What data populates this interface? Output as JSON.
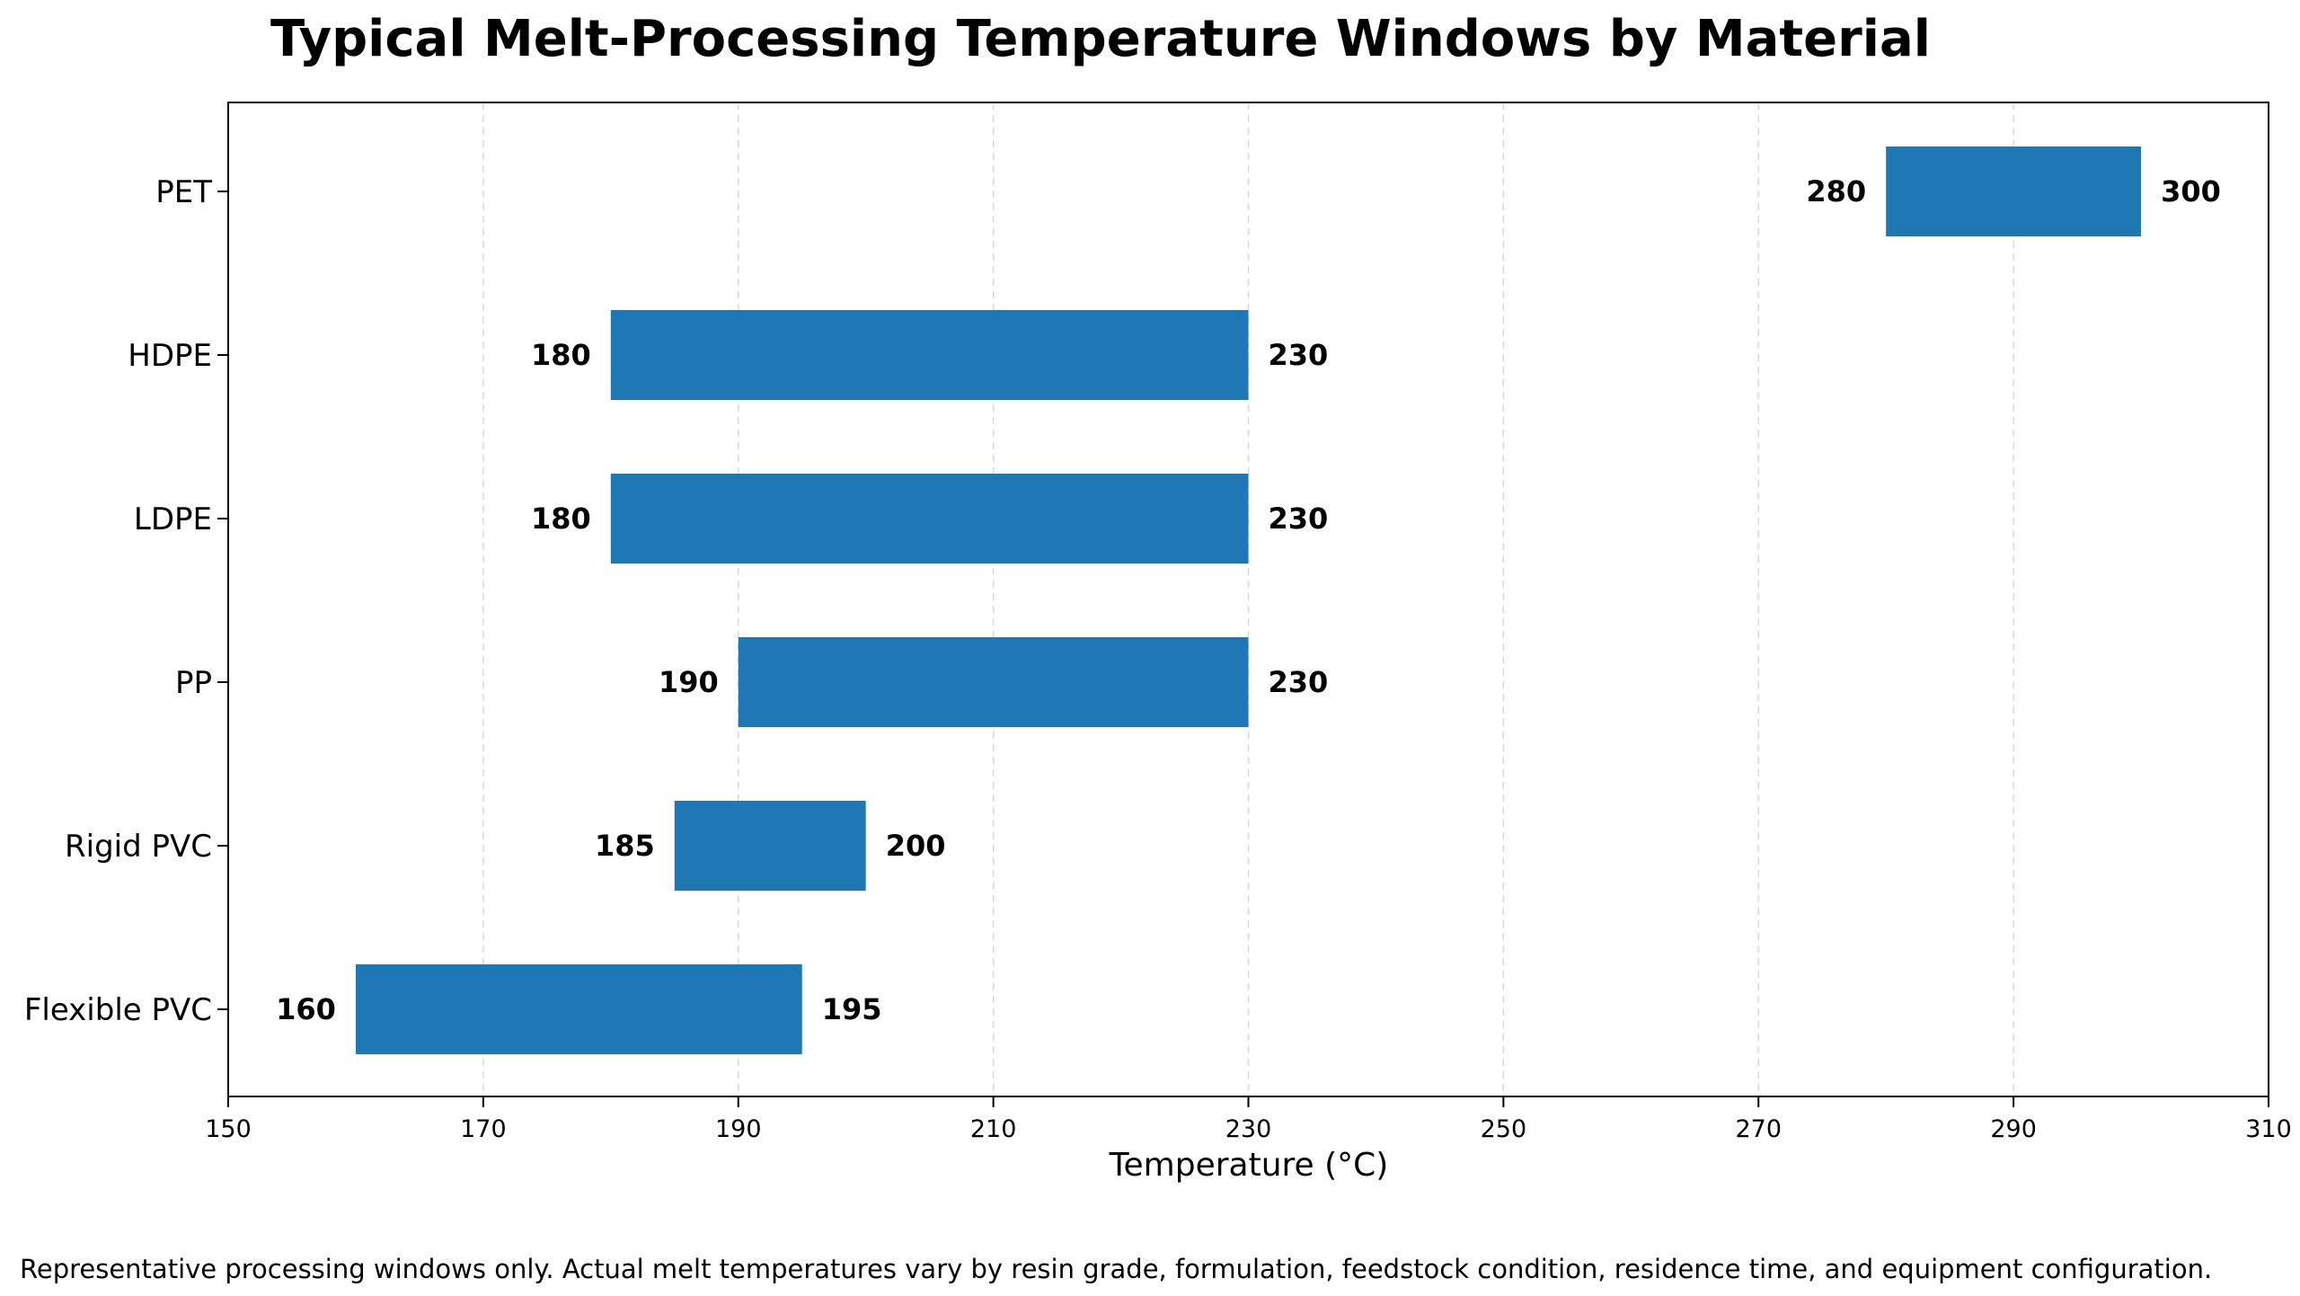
{
  "chart_data": {
    "type": "bar",
    "orientation": "horizontal",
    "title": "Typical Melt-Processing Temperature Windows by Material",
    "xlabel": "Temperature (°C)",
    "ylabel": "",
    "xlim": [
      150,
      310
    ],
    "xticks": [
      "150",
      "170",
      "190",
      "210",
      "230",
      "250",
      "270",
      "290",
      "310"
    ],
    "grid": "x-dashed",
    "color": "#1f77b4",
    "categories": [
      "PET",
      "HDPE",
      "LDPE",
      "PP",
      "Rigid PVC",
      "Flexible PVC"
    ],
    "ranges": [
      {
        "category": "PET",
        "low": 280,
        "high": 300,
        "low_label": "280",
        "high_label": "300"
      },
      {
        "category": "HDPE",
        "low": 180,
        "high": 230,
        "low_label": "180",
        "high_label": "230"
      },
      {
        "category": "LDPE",
        "low": 180,
        "high": 230,
        "low_label": "180",
        "high_label": "230"
      },
      {
        "category": "PP",
        "low": 190,
        "high": 230,
        "low_label": "190",
        "high_label": "230"
      },
      {
        "category": "Rigid PVC",
        "low": 185,
        "high": 200,
        "low_label": "185",
        "high_label": "200"
      },
      {
        "category": "Flexible PVC",
        "low": 160,
        "high": 195,
        "low_label": "160",
        "high_label": "195"
      }
    ]
  },
  "footnote": "Representative processing windows only. Actual melt temperatures vary by resin grade, formulation, feedstock condition, residence time, and equipment configuration."
}
